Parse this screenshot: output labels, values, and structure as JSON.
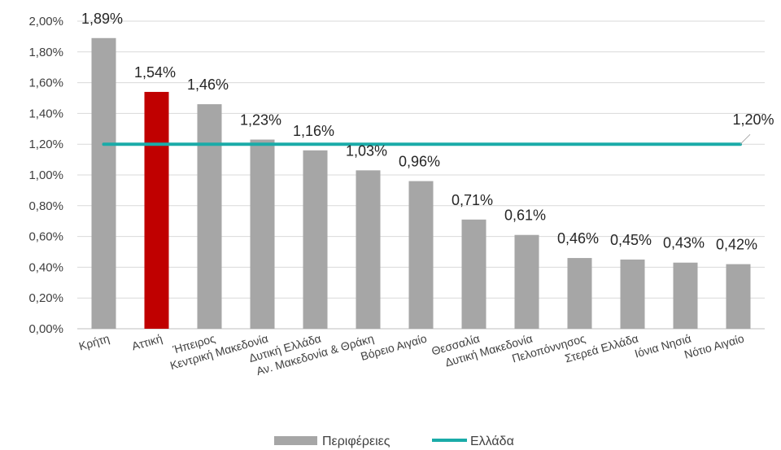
{
  "chart_data": {
    "type": "bar",
    "categories": [
      "Κρήτη",
      "Αττική",
      "Ήπειρος",
      "Κεντρική Μακεδονία",
      "Δυτική Ελλάδα",
      "Αν. Μακεδονία & Θράκη",
      "Βόρειο Αιγαίο",
      "Θεσσαλία",
      "Δυτική Μακεδονία",
      "Πελοπόννησος",
      "Στερεά Ελλάδα",
      "Ιόνια Νησιά",
      "Νότιο Αιγαίο"
    ],
    "series": [
      {
        "name": "Περιφέρειες",
        "type": "bar",
        "values": [
          1.89,
          1.54,
          1.46,
          1.23,
          1.16,
          1.03,
          0.96,
          0.71,
          0.61,
          0.46,
          0.45,
          0.43,
          0.42
        ],
        "labels": [
          "1,89%",
          "1,54%",
          "1,46%",
          "1,23%",
          "1,16%",
          "1,03%",
          "0,96%",
          "0,71%",
          "0,61%",
          "0,46%",
          "0,45%",
          "0,43%",
          "0,42%"
        ],
        "color": "#a6a6a6",
        "highlight_index": 1,
        "highlight_color": "#c00000"
      },
      {
        "name": "Ελλάδα",
        "type": "line",
        "value": 1.2,
        "label": "1,20%",
        "color": "#1aaba8"
      }
    ],
    "ylim": [
      0,
      2.0
    ],
    "yticks": [
      0,
      0.2,
      0.4,
      0.6,
      0.8,
      1.0,
      1.2,
      1.4,
      1.6,
      1.8,
      2.0
    ],
    "ytick_labels": [
      "0,00%",
      "0,20%",
      "0,40%",
      "0,60%",
      "0,80%",
      "1,00%",
      "1,20%",
      "1,40%",
      "1,60%",
      "1,80%",
      "2,00%"
    ],
    "grid": true,
    "legend": "bottom",
    "title": "",
    "xlabel": "",
    "ylabel": ""
  }
}
